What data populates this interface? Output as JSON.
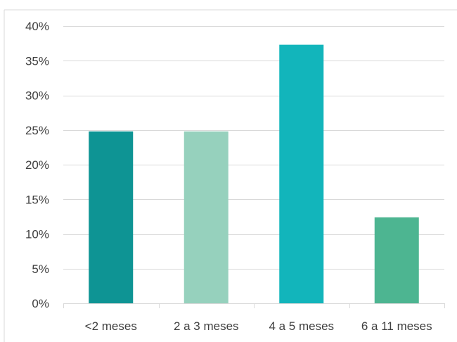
{
  "chart_data": {
    "type": "bar",
    "categories": [
      "<2 meses",
      "2 a 3 meses",
      "4 a 5 meses",
      "6 a 11 meses"
    ],
    "values": [
      24.8,
      24.8,
      37.3,
      12.4
    ],
    "value_unit": "%",
    "colors": [
      "#0e9494",
      "#96d1bd",
      "#12b5bb",
      "#4db591"
    ],
    "ylim": [
      0,
      40
    ],
    "yticks": [
      0,
      5,
      10,
      15,
      20,
      25,
      30,
      35,
      40
    ],
    "ytick_labels": [
      "0%",
      "5%",
      "10%",
      "15%",
      "20%",
      "25%",
      "30%",
      "35%",
      "40%"
    ],
    "xlabel": "",
    "ylabel": "",
    "grid": true,
    "gridline_color": "#d9d9d9",
    "text_color": "#404040"
  }
}
